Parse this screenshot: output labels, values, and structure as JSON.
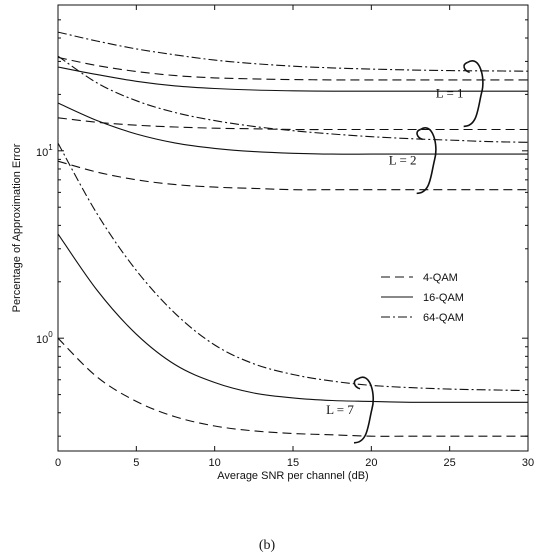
{
  "caption": "(b)",
  "chart_data": {
    "type": "line",
    "xlabel": "Average SNR per channel (dB)",
    "ylabel": "Percentage of Approximation Error",
    "xlim": [
      0,
      30
    ],
    "ylim": [
      0.25,
      60
    ],
    "yscale": "log",
    "x_ticks": [
      0,
      5,
      10,
      15,
      20,
      25,
      30
    ],
    "x_tick_labels": [
      "0",
      "5",
      "10",
      "15",
      "20",
      "25",
      "30"
    ],
    "y_ticks": [
      1,
      10
    ],
    "y_tick_labels": [
      {
        "base": "10",
        "exp": "0"
      },
      {
        "base": "10",
        "exp": "1"
      }
    ],
    "grid": false,
    "legend_position": "right-middle",
    "legend": [
      {
        "label": "4-QAM",
        "style": "dashed"
      },
      {
        "label": "16-QAM",
        "style": "solid"
      },
      {
        "label": "64-QAM",
        "style": "dashdot"
      }
    ],
    "series": [
      {
        "group": "L = 1",
        "modulation": "4-QAM",
        "style": "dashed",
        "x": [
          0,
          2.5,
          5,
          7.5,
          10,
          12.5,
          15,
          17.5,
          20,
          22.5,
          25,
          27.5,
          30
        ],
        "y": [
          31.5,
          28.5,
          26.5,
          25.2,
          24.5,
          24.2,
          24.0,
          23.9,
          23.9,
          23.9,
          23.9,
          23.9,
          23.9
        ]
      },
      {
        "group": "L = 1",
        "modulation": "16-QAM",
        "style": "solid",
        "x": [
          0,
          2.5,
          5,
          7.5,
          10,
          12.5,
          15,
          17.5,
          20,
          22.5,
          25,
          27.5,
          30
        ],
        "y": [
          28.0,
          25.5,
          23.5,
          22.2,
          21.5,
          21.1,
          20.9,
          20.8,
          20.8,
          20.8,
          20.8,
          20.8,
          20.8
        ]
      },
      {
        "group": "L = 1",
        "modulation": "64-QAM",
        "style": "dashdot",
        "x": [
          0,
          2.5,
          5,
          7.5,
          10,
          12.5,
          15,
          17.5,
          20,
          22.5,
          25,
          27.5,
          30
        ],
        "y": [
          43.0,
          38.5,
          35.0,
          32.5,
          30.5,
          29.2,
          28.3,
          27.7,
          27.3,
          27.0,
          26.8,
          26.7,
          26.6
        ]
      },
      {
        "group": "L = 2",
        "modulation": "4-QAM",
        "style": "dashed",
        "x": [
          0,
          2.5,
          5,
          7.5,
          10,
          12.5,
          15,
          17.5,
          20,
          22.5,
          25,
          27.5,
          30
        ],
        "y": [
          15.0,
          14.2,
          13.7,
          13.4,
          13.2,
          13.1,
          13.0,
          13.0,
          13.0,
          13.0,
          13.0,
          13.0,
          13.0
        ]
      },
      {
        "group": "L = 2",
        "modulation": "16-QAM",
        "style": "solid",
        "x": [
          0,
          2.5,
          5,
          7.5,
          10,
          12.5,
          15,
          17.5,
          20,
          22.5,
          25,
          27.5,
          30
        ],
        "y": [
          18.0,
          14.5,
          12.3,
          11.0,
          10.3,
          9.9,
          9.7,
          9.6,
          9.6,
          9.6,
          9.6,
          9.6,
          9.6
        ]
      },
      {
        "group": "L = 2",
        "modulation": "64-QAM",
        "style": "dashdot",
        "x": [
          0,
          2.5,
          5,
          7.5,
          10,
          12.5,
          15,
          17.5,
          20,
          22.5,
          25,
          27.5,
          30
        ],
        "y": [
          32.0,
          23.0,
          18.5,
          16.0,
          14.5,
          13.5,
          12.8,
          12.3,
          11.9,
          11.6,
          11.4,
          11.2,
          11.1
        ]
      },
      {
        "group": "L = 2",
        "modulation": "4-QAM",
        "style": "dashed",
        "x": [
          0,
          2.5,
          5,
          7.5,
          10,
          12.5,
          15,
          17.5,
          20,
          22.5,
          25,
          27.5,
          30
        ],
        "y": [
          8.8,
          7.7,
          7.0,
          6.6,
          6.4,
          6.3,
          6.2,
          6.2,
          6.2,
          6.2,
          6.2,
          6.2,
          6.2
        ]
      },
      {
        "group": "L = 7",
        "modulation": "4-QAM",
        "style": "dashed",
        "x": [
          0,
          2.5,
          5,
          7.5,
          10,
          12.5,
          15,
          17.5,
          20,
          22.5,
          25,
          27.5,
          30
        ],
        "y": [
          1.0,
          0.62,
          0.46,
          0.38,
          0.34,
          0.32,
          0.31,
          0.305,
          0.3,
          0.3,
          0.3,
          0.3,
          0.3
        ]
      },
      {
        "group": "L = 7",
        "modulation": "16-QAM",
        "style": "solid",
        "x": [
          0,
          2.5,
          5,
          7.5,
          10,
          12.5,
          15,
          17.5,
          20,
          22.5,
          25,
          27.5,
          30
        ],
        "y": [
          3.6,
          1.8,
          1.05,
          0.72,
          0.58,
          0.51,
          0.48,
          0.465,
          0.46,
          0.455,
          0.455,
          0.455,
          0.455
        ]
      },
      {
        "group": "L = 7",
        "modulation": "64-QAM",
        "style": "dashdot",
        "x": [
          0,
          2.5,
          5,
          7.5,
          10,
          12.5,
          15,
          17.5,
          20,
          22.5,
          25,
          27.5,
          30
        ],
        "y": [
          11.0,
          4.6,
          2.3,
          1.35,
          0.92,
          0.73,
          0.64,
          0.59,
          0.56,
          0.545,
          0.535,
          0.53,
          0.525
        ]
      }
    ],
    "annotations": [
      {
        "text": "L = 1",
        "group": "L = 1",
        "x": 25,
        "y": 20.5
      },
      {
        "text": "L = 2",
        "group": "L = 2",
        "x": 22,
        "y": 9.0
      },
      {
        "text": "L = 7",
        "group": "L = 7",
        "x": 18,
        "y": 0.42
      }
    ]
  }
}
